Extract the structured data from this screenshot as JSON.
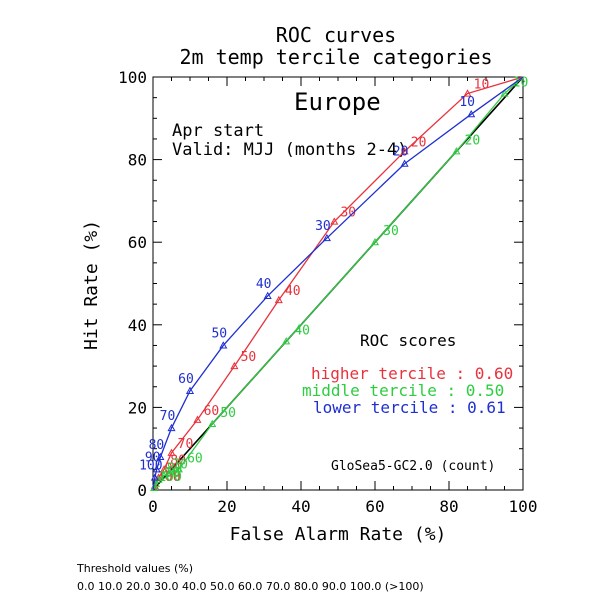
{
  "title_line1": "ROC curves",
  "title_line2": "2m temp tercile categories",
  "region": "Europe",
  "start_label": "Apr start",
  "valid_label": "Valid: MJJ (months 2-4)",
  "scores": {
    "heading": "ROC scores",
    "higher": "higher tercile : 0.60",
    "middle": "middle tercile : 0.50",
    "lower": "lower tercile : 0.61"
  },
  "model_label": "GloSea5-GC2.0 (count)",
  "threshold_title": "Threshold values (%)",
  "threshold_values": "0.0 10.0 20.0 30.0 40.0 50.0 60.0 70.0 80.0 90.0 100.0 (>100)",
  "colors": {
    "higher": "#e8323c",
    "middle": "#2ecc40",
    "lower": "#1f2fd0",
    "diagonal": "#000000"
  },
  "chart_data": {
    "type": "line",
    "xlabel": "False Alarm Rate (%)",
    "ylabel": "Hit Rate (%)",
    "xlim": [
      0,
      100
    ],
    "ylim": [
      0,
      100
    ],
    "xticks": [
      "0",
      "20",
      "40",
      "60",
      "80",
      "100"
    ],
    "yticks": [
      "0",
      "20",
      "40",
      "60",
      "80",
      "100"
    ],
    "grid": false,
    "series": [
      {
        "name": "higher tercile",
        "color": "#e8323c",
        "points": [
          [
            0,
            0
          ],
          [
            0.5,
            1
          ],
          [
            1.5,
            3
          ],
          [
            3,
            5
          ],
          [
            5,
            9
          ],
          [
            12,
            17
          ],
          [
            22,
            30
          ],
          [
            34,
            46
          ],
          [
            49,
            65
          ],
          [
            68,
            82
          ],
          [
            85,
            96
          ],
          [
            100,
            100
          ]
        ],
        "labels": [
          null,
          "100",
          "90",
          "80",
          "70",
          "60",
          "50",
          "40",
          "30",
          "20",
          "10",
          null
        ]
      },
      {
        "name": "middle tercile",
        "color": "#2ecc40",
        "points": [
          [
            0,
            0
          ],
          [
            0.3,
            0.5
          ],
          [
            0.8,
            1.5
          ],
          [
            1.5,
            2.5
          ],
          [
            3,
            3.5
          ],
          [
            7,
            5
          ],
          [
            16,
            16
          ],
          [
            36,
            36
          ],
          [
            60,
            60
          ],
          [
            82,
            82
          ],
          [
            95,
            96
          ],
          [
            100,
            100
          ]
        ],
        "labels": [
          null,
          "100",
          "90",
          "80",
          "70",
          "60",
          "50",
          "40",
          "30",
          "20",
          "10",
          null
        ]
      },
      {
        "name": "lower tercile",
        "color": "#1f2fd0",
        "points": [
          [
            0,
            0
          ],
          [
            0.5,
            3
          ],
          [
            1,
            5
          ],
          [
            2,
            8
          ],
          [
            5,
            15
          ],
          [
            10,
            24
          ],
          [
            19,
            35
          ],
          [
            31,
            47
          ],
          [
            47,
            61
          ],
          [
            68,
            79
          ],
          [
            86,
            91
          ],
          [
            100,
            100
          ]
        ],
        "labels": [
          null,
          "100",
          "90",
          "80",
          "70",
          "60",
          "50",
          "40",
          "30",
          "20",
          "10",
          null
        ]
      }
    ]
  }
}
